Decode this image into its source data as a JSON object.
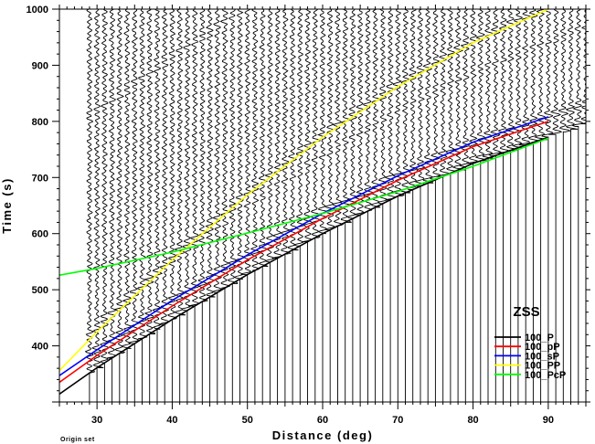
{
  "chart_data": {
    "type": "line",
    "xlabel": "Distance (deg)",
    "ylabel": "Time (s)",
    "xlim": [
      25,
      95
    ],
    "ylim": [
      300,
      1000
    ],
    "xticks": [
      30,
      40,
      50,
      60,
      70,
      80,
      90
    ],
    "yticks": [
      400,
      500,
      600,
      700,
      800,
      900,
      1000
    ],
    "grid": false,
    "legend_title": "ZSS",
    "legend_position": "bottom-right",
    "footnote": "Origin set",
    "seismograms": {
      "distances": [
        29,
        30,
        31,
        32,
        33,
        34,
        35,
        36,
        37,
        38,
        39,
        40,
        41,
        42,
        43,
        44,
        45,
        46,
        47,
        48,
        49,
        50,
        51,
        52,
        53,
        54,
        55,
        56,
        57,
        58,
        59,
        60,
        61,
        62,
        63,
        64,
        65,
        66,
        67,
        68,
        69,
        70,
        71,
        72,
        73,
        74,
        75,
        76,
        77,
        78,
        79,
        80,
        81,
        82,
        83,
        84,
        85,
        86,
        87,
        88,
        89,
        90,
        91,
        92,
        93,
        94,
        95
      ],
      "trace_top": 1000,
      "color": "#000000"
    },
    "series": [
      {
        "name": "100_P",
        "color": "#000000",
        "x": [
          25,
          30,
          40,
          50,
          60,
          70,
          80,
          90
        ],
        "y": [
          314,
          361,
          447,
          527,
          600,
          667,
          725,
          772
        ]
      },
      {
        "name": "100_pP",
        "color": "#ff0000",
        "x": [
          25,
          30,
          40,
          50,
          60,
          70,
          80,
          90
        ],
        "y": [
          335,
          383,
          471,
          553,
          627,
          695,
          755,
          800
        ]
      },
      {
        "name": "100_sP",
        "color": "#0000ff",
        "x": [
          25,
          30,
          40,
          50,
          60,
          70,
          80,
          90
        ],
        "y": [
          347,
          393,
          481,
          562,
          636,
          703,
          763,
          808
        ]
      },
      {
        "name": "100_PP",
        "color": "#ffff00",
        "x": [
          25,
          30,
          40,
          50,
          60,
          70,
          80,
          90
        ],
        "y": [
          356,
          425,
          553,
          669,
          772,
          862,
          940,
          1000
        ]
      },
      {
        "name": "100_PcP",
        "color": "#00ff00",
        "x": [
          25,
          30,
          40,
          50,
          60,
          70,
          80,
          90
        ],
        "y": [
          526,
          538,
          567,
          601,
          636,
          675,
          720,
          770
        ]
      }
    ]
  }
}
